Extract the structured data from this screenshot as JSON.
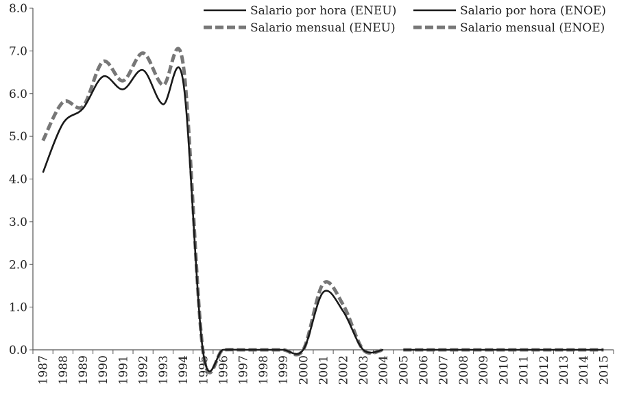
{
  "chart_data": {
    "type": "line",
    "title": "",
    "xlabel": "",
    "ylabel": "",
    "ylim": [
      0,
      8
    ],
    "yticks": [
      "0.0",
      "1.0",
      "2.0",
      "3.0",
      "4.0",
      "5.0",
      "6.0",
      "7.0",
      "8.0"
    ],
    "categories": [
      "1987",
      "1988",
      "1989",
      "1990",
      "1991",
      "1992",
      "1993",
      "1994",
      "1995",
      "1996",
      "1997",
      "1998",
      "1999",
      "2000",
      "2001",
      "2002",
      "2003",
      "2004",
      "2005",
      "2006",
      "2007",
      "2008",
      "2009",
      "2010",
      "2011",
      "2012",
      "2013",
      "2014",
      "2015"
    ],
    "grid": false,
    "legend_position": "top-right",
    "series": [
      {
        "name": "Salario por hora (ENEU)",
        "style": "solid",
        "color": "#1a1a1a",
        "values": [
          4.15,
          5.3,
          5.65,
          6.4,
          6.1,
          6.55,
          5.75,
          6.3,
          -0.05,
          0.0,
          0.0,
          0.0,
          0.0,
          0.0,
          1.35,
          0.9,
          0.0,
          0.0,
          null,
          null,
          null,
          null,
          null,
          null,
          null,
          null,
          null,
          null,
          null
        ]
      },
      {
        "name": "Salario mensual (ENEU)",
        "style": "dashed",
        "color": "#777777",
        "values": [
          4.9,
          5.8,
          5.7,
          6.75,
          6.3,
          6.95,
          6.2,
          6.7,
          -0.05,
          0.0,
          0.0,
          0.0,
          0.0,
          0.0,
          1.55,
          1.05,
          0.0,
          0.0,
          null,
          null,
          null,
          null,
          null,
          null,
          null,
          null,
          null,
          null,
          null
        ]
      },
      {
        "name": "Salario por hora (ENOE)",
        "style": "solid",
        "color": "#1a1a1a",
        "values": [
          null,
          null,
          null,
          null,
          null,
          null,
          null,
          null,
          null,
          null,
          null,
          null,
          null,
          null,
          null,
          null,
          null,
          null,
          0.0,
          0.0,
          0.0,
          0.0,
          0.0,
          0.0,
          0.0,
          0.0,
          0.0,
          0.0,
          0.0
        ]
      },
      {
        "name": "Salario mensual (ENOE)",
        "style": "dashed",
        "color": "#777777",
        "values": [
          null,
          null,
          null,
          null,
          null,
          null,
          null,
          null,
          null,
          null,
          null,
          null,
          null,
          null,
          null,
          null,
          null,
          null,
          0.0,
          0.0,
          0.0,
          0.0,
          0.0,
          0.0,
          0.0,
          0.0,
          0.0,
          0.0,
          0.0
        ]
      }
    ]
  }
}
